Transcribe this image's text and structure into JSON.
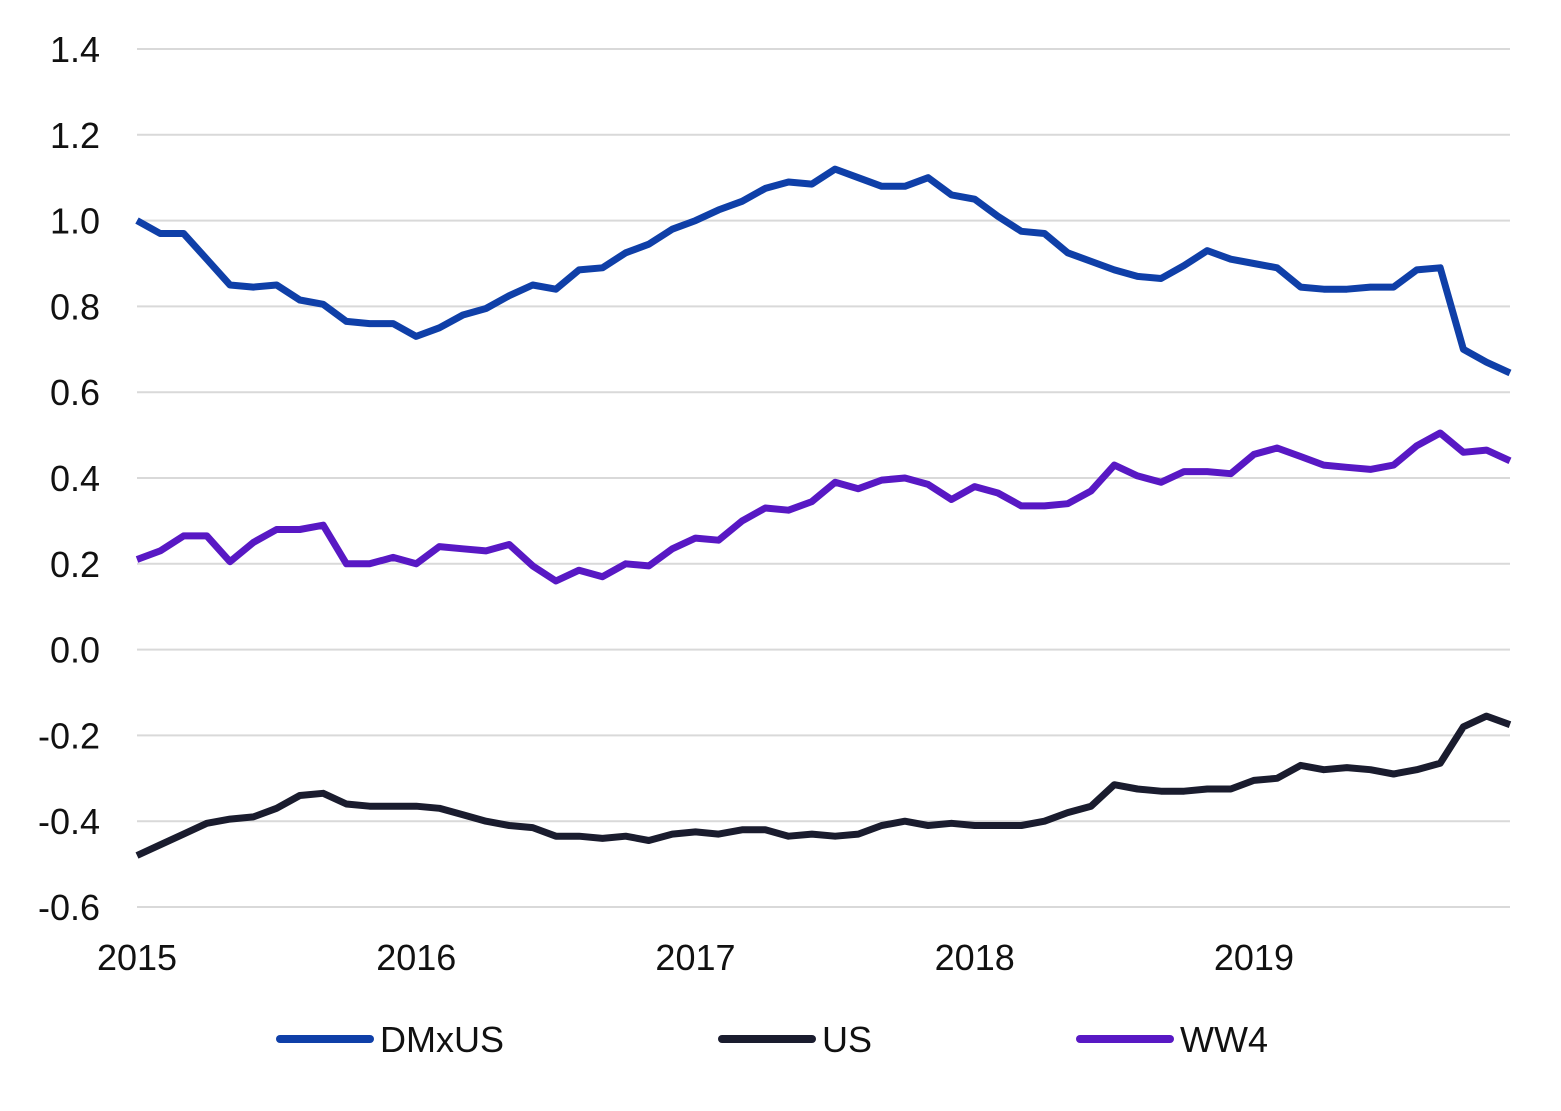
{
  "chart_data": {
    "type": "line",
    "title": "",
    "xlabel": "",
    "ylabel": "",
    "xlim": [
      2015,
      2019.917
    ],
    "ylim": [
      -0.6,
      1.4
    ],
    "y_ticks": [
      "1.4",
      "1.2",
      "1.0",
      "0.8",
      "0.6",
      "0.4",
      "0.2",
      "0.0",
      "-0.2",
      "-0.4",
      "-0.6"
    ],
    "y_tick_values": [
      1.4,
      1.2,
      1.0,
      0.8,
      0.6,
      0.4,
      0.2,
      0.0,
      -0.2,
      -0.4,
      -0.6
    ],
    "x_ticks": [
      "2015",
      "2016",
      "2017",
      "2018",
      "2019"
    ],
    "x_tick_values": [
      2015,
      2016,
      2017,
      2018,
      2019
    ],
    "grid": true,
    "legend_position": "bottom",
    "x": [
      2015.0,
      2015.083,
      2015.167,
      2015.25,
      2015.333,
      2015.417,
      2015.5,
      2015.583,
      2015.667,
      2015.75,
      2015.833,
      2015.917,
      2016.0,
      2016.083,
      2016.167,
      2016.25,
      2016.333,
      2016.417,
      2016.5,
      2016.583,
      2016.667,
      2016.75,
      2016.833,
      2016.917,
      2017.0,
      2017.083,
      2017.167,
      2017.25,
      2017.333,
      2017.417,
      2017.5,
      2017.583,
      2017.667,
      2017.75,
      2017.833,
      2017.917,
      2018.0,
      2018.083,
      2018.167,
      2018.25,
      2018.333,
      2018.417,
      2018.5,
      2018.583,
      2018.667,
      2018.75,
      2018.833,
      2018.917,
      2019.0,
      2019.083,
      2019.167,
      2019.25,
      2019.333,
      2019.417,
      2019.5,
      2019.583,
      2019.667,
      2019.75,
      2019.833,
      2019.917
    ],
    "series": [
      {
        "name": "DMxUS",
        "color": "#0f3fa8",
        "values": [
          1.0,
          0.97,
          0.97,
          0.91,
          0.85,
          0.845,
          0.85,
          0.815,
          0.805,
          0.765,
          0.76,
          0.76,
          0.73,
          0.75,
          0.78,
          0.795,
          0.825,
          0.85,
          0.84,
          0.885,
          0.89,
          0.925,
          0.945,
          0.98,
          1.0,
          1.025,
          1.045,
          1.075,
          1.09,
          1.085,
          1.12,
          1.1,
          1.08,
          1.08,
          1.1,
          1.06,
          1.05,
          1.01,
          0.975,
          0.97,
          0.925,
          0.905,
          0.885,
          0.87,
          0.865,
          0.895,
          0.93,
          0.91,
          0.9,
          0.89,
          0.845,
          0.84,
          0.84,
          0.845,
          0.845,
          0.885,
          0.89,
          0.7,
          0.67,
          0.645
        ]
      },
      {
        "name": "US",
        "color": "#1a1c2e",
        "values": [
          -0.48,
          -0.455,
          -0.43,
          -0.405,
          -0.395,
          -0.39,
          -0.37,
          -0.34,
          -0.335,
          -0.36,
          -0.365,
          -0.365,
          -0.365,
          -0.37,
          -0.385,
          -0.4,
          -0.41,
          -0.415,
          -0.435,
          -0.435,
          -0.44,
          -0.435,
          -0.445,
          -0.43,
          -0.425,
          -0.43,
          -0.42,
          -0.42,
          -0.435,
          -0.43,
          -0.435,
          -0.43,
          -0.41,
          -0.4,
          -0.41,
          -0.405,
          -0.41,
          -0.41,
          -0.41,
          -0.4,
          -0.38,
          -0.365,
          -0.315,
          -0.325,
          -0.33,
          -0.33,
          -0.325,
          -0.325,
          -0.305,
          -0.3,
          -0.27,
          -0.28,
          -0.275,
          -0.28,
          -0.29,
          -0.28,
          -0.265,
          -0.18,
          -0.155,
          -0.175
        ]
      },
      {
        "name": "WW4",
        "color": "#5818c4",
        "values": [
          0.21,
          0.23,
          0.265,
          0.265,
          0.205,
          0.25,
          0.28,
          0.28,
          0.29,
          0.2,
          0.2,
          0.215,
          0.2,
          0.24,
          0.235,
          0.23,
          0.245,
          0.195,
          0.16,
          0.185,
          0.17,
          0.2,
          0.195,
          0.235,
          0.26,
          0.255,
          0.3,
          0.33,
          0.325,
          0.345,
          0.39,
          0.375,
          0.395,
          0.4,
          0.385,
          0.35,
          0.38,
          0.365,
          0.335,
          0.335,
          0.34,
          0.37,
          0.43,
          0.405,
          0.39,
          0.415,
          0.415,
          0.41,
          0.455,
          0.47,
          0.45,
          0.43,
          0.425,
          0.42,
          0.43,
          0.475,
          0.505,
          0.46,
          0.465,
          0.44
        ]
      }
    ]
  }
}
